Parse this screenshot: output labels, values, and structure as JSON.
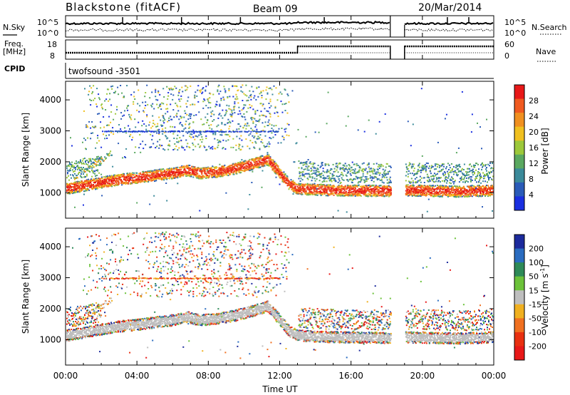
{
  "header": {
    "radar": "Blackstone (fitACF)",
    "beam": "Beam 09",
    "date": "20/Mar/2014"
  },
  "noise_panel": {
    "left_label": "N.Sky",
    "right_label": "N.Search",
    "ticks": [
      "10^5",
      "10^0"
    ]
  },
  "freq_panel": {
    "left_label_1": "Freq.",
    "left_label_2": "[MHz]",
    "left_ticks": [
      "18",
      "8"
    ],
    "right_label": "Nave",
    "right_ticks": [
      "60",
      "0"
    ]
  },
  "cpid_panel": {
    "label": "CPID",
    "program": "twofsound -3501"
  },
  "x_axis": {
    "label": "Time UT",
    "ticks": [
      "00:00",
      "04:00",
      "08:00",
      "12:00",
      "16:00",
      "20:00",
      "00:00"
    ]
  },
  "chart_data": [
    {
      "type": "heatmap",
      "title": "",
      "xlabel": "Time UT",
      "ylabel": "Slant Range [km]",
      "x_range_hours": [
        0,
        24
      ],
      "ylim": [
        180,
        4600
      ],
      "y_ticks": [
        1000,
        2000,
        3000,
        4000
      ],
      "quantity": "Power",
      "colorbar_label": "Power [dB]",
      "colorbar_ticks": [
        4,
        8,
        12,
        16,
        20,
        24,
        28
      ],
      "colorbar_range": [
        0,
        32
      ],
      "colors": [
        "#1a2fe0",
        "#2a5bb8",
        "#3b8a9a",
        "#5aa860",
        "#9cc83a",
        "#f0c020",
        "#f09020",
        "#f05a20",
        "#e81818"
      ],
      "data_gap_hours": [
        18.2,
        19.0
      ],
      "main_echo_band_km": [
        [
          0.0,
          1150
        ],
        [
          1.0,
          1250
        ],
        [
          2.0,
          1350
        ],
        [
          3.0,
          1450
        ],
        [
          4.0,
          1500
        ],
        [
          5.0,
          1580
        ],
        [
          6.0,
          1650
        ],
        [
          6.8,
          1750
        ],
        [
          7.5,
          1650
        ],
        [
          8.5,
          1700
        ],
        [
          9.5,
          1800
        ],
        [
          10.5,
          1950
        ],
        [
          11.3,
          2100
        ],
        [
          12.0,
          1650
        ],
        [
          12.5,
          1300
        ],
        [
          13.0,
          1150
        ],
        [
          15.0,
          1100
        ],
        [
          18.2,
          1080
        ],
        [
          19.0,
          1100
        ],
        [
          22.0,
          1060
        ],
        [
          24.0,
          1100
        ]
      ]
    },
    {
      "type": "heatmap",
      "title": "",
      "xlabel": "Time UT",
      "ylabel": "Slant Range [km]",
      "x_range_hours": [
        0,
        24
      ],
      "ylim": [
        180,
        4600
      ],
      "y_ticks": [
        1000,
        2000,
        3000,
        4000
      ],
      "quantity": "Velocity",
      "colorbar_label": "Velocity [m s",
      "colorbar_label_sup": "-1",
      "colorbar_label_end": "]",
      "colorbar_ticks": [
        200,
        100,
        50,
        15,
        -15,
        -50,
        -100,
        -200
      ],
      "colors": [
        "#1c2a9c",
        "#2a6cc0",
        "#2e8a58",
        "#6cc23a",
        "#bebebe",
        "#f0b020",
        "#f07020",
        "#e83010",
        "#e81818"
      ],
      "data_gap_hours": [
        18.2,
        19.0
      ]
    }
  ]
}
